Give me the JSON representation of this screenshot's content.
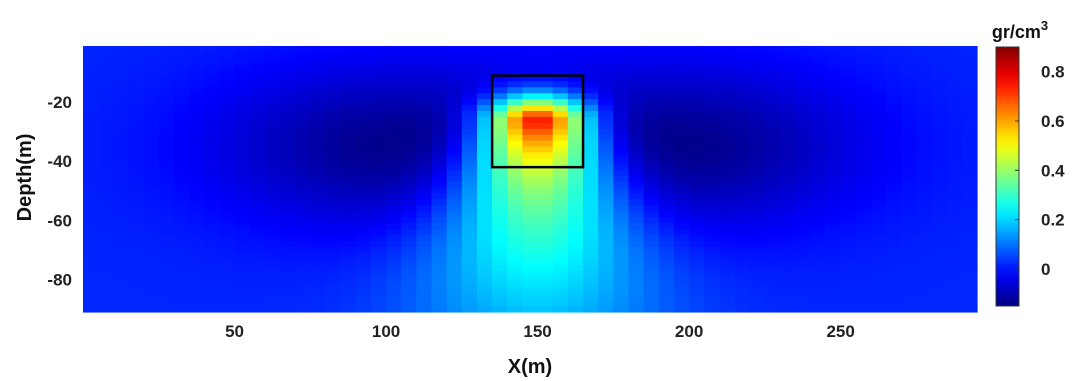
{
  "chart_data": {
    "type": "heatmap",
    "title": "",
    "xlabel": "X(m)",
    "ylabel": "Depth(m)",
    "xlim": [
      0,
      295
    ],
    "ylim": [
      -90,
      -1
    ],
    "x_ticks": [
      50,
      100,
      150,
      200,
      250
    ],
    "y_ticks": [
      -20,
      -40,
      -60,
      -80
    ],
    "x_tick_labels": [
      "50",
      "100",
      "150",
      "200",
      "250"
    ],
    "y_tick_labels": [
      "-20",
      "-40",
      "-60",
      "-80"
    ],
    "grid": false,
    "colorbar": {
      "unit_base": "gr/cm",
      "unit_exp": "3",
      "range": [
        -0.15,
        0.9
      ],
      "ticks": [
        0,
        0.2,
        0.4,
        0.6,
        0.8
      ],
      "tick_labels": [
        "0",
        "0.2",
        "0.4",
        "0.6",
        "0.8"
      ],
      "colormap": "jet"
    },
    "field": {
      "background": 0.02,
      "anomaly": {
        "x_center": 150,
        "depth_center": -27,
        "peak": 0.9
      },
      "negative_lobes": [
        {
          "x_center": 100,
          "depth_center": -35,
          "min": -0.13
        },
        {
          "x_center": 200,
          "depth_center": -35,
          "min": -0.13
        }
      ]
    },
    "source_box": {
      "x_min": 135,
      "x_max": 165,
      "depth_top": -11,
      "depth_bottom": -42
    }
  }
}
